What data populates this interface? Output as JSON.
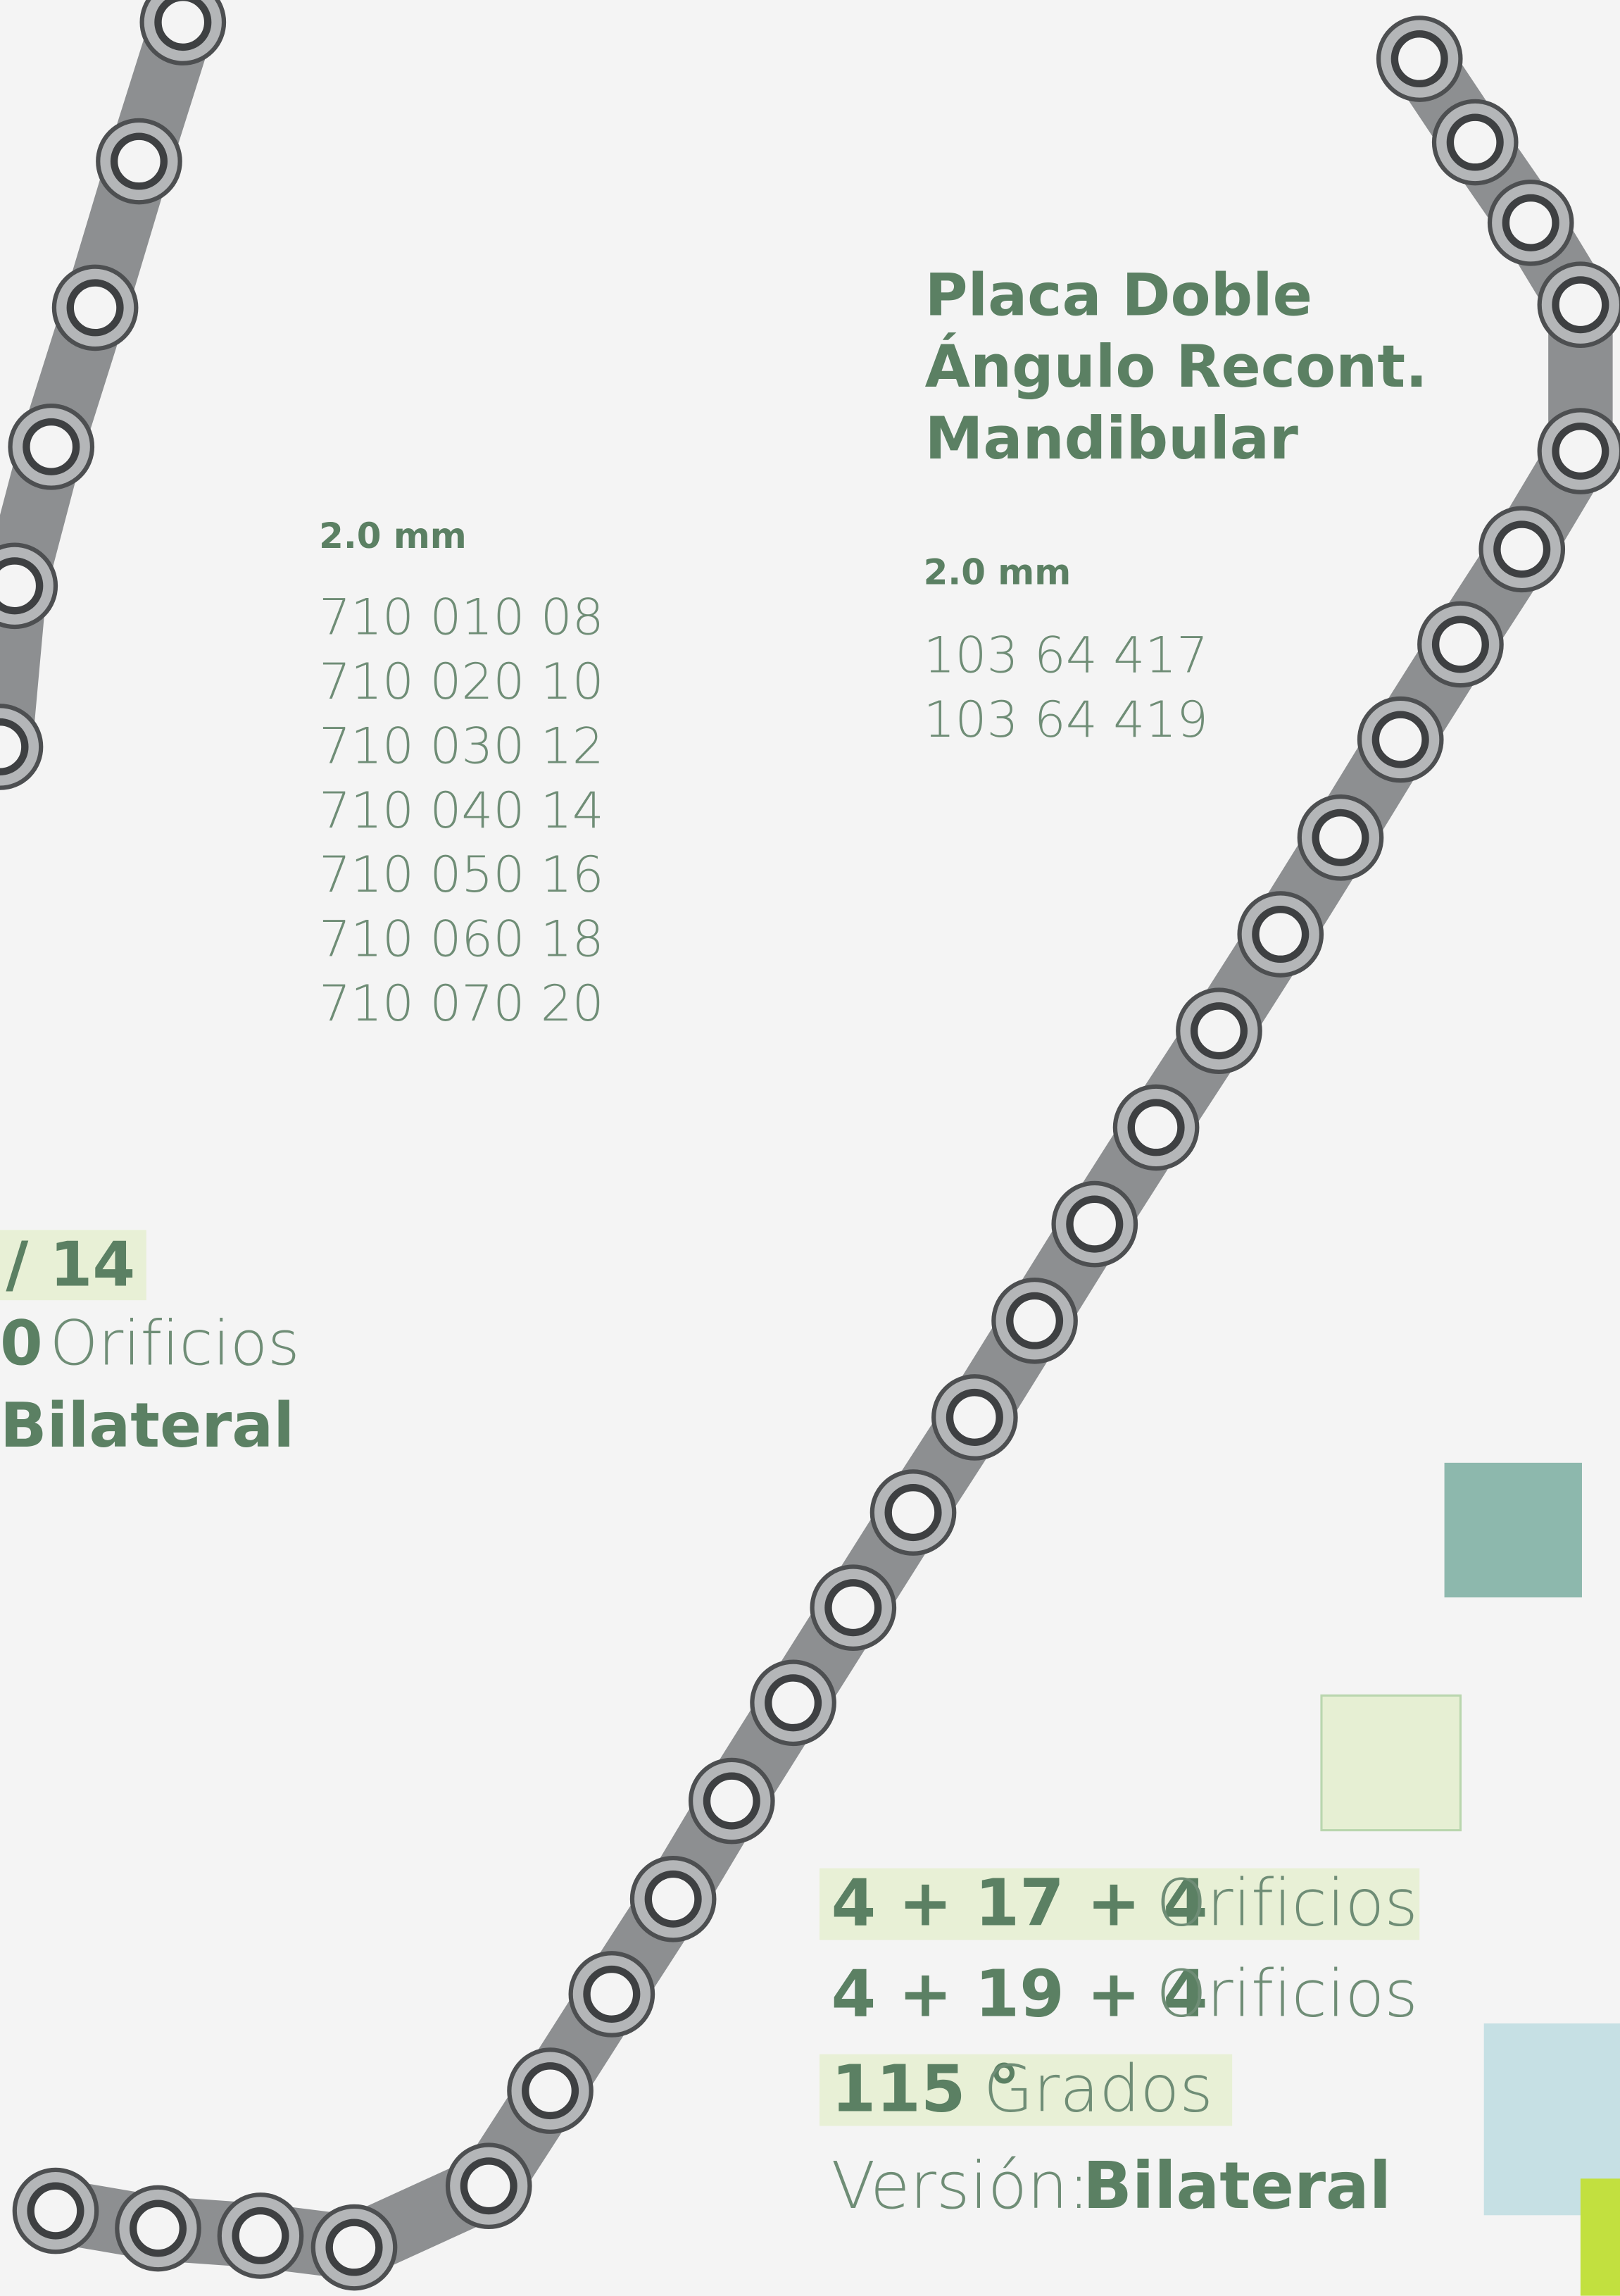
{
  "left_panel": {
    "size": "2.0 mm",
    "codes": [
      "710 010 08",
      "710 020 10",
      "710 030 12",
      "710 040 14",
      "710 050 16",
      "710 060 18",
      "710 070 20"
    ]
  },
  "left_cut": {
    "config": "/ 14",
    "holes": "0",
    "holes_unit": "Orificios",
    "version": "Bilateral"
  },
  "product": {
    "title": [
      "Placa Doble",
      "Ángulo Recont.",
      "Mandibular"
    ],
    "size": "2.0 mm",
    "codes": [
      "103 64 417",
      "103 64 419"
    ]
  },
  "specs": {
    "options": [
      {
        "holes": "4 + 17 + 4",
        "unit": "Orificios"
      },
      {
        "holes": "4 + 19 + 4",
        "unit": "Orificios"
      }
    ],
    "angle": "115 °",
    "angle_unit": "Grados",
    "version_label": "Versión:",
    "version": "Bilateral"
  }
}
